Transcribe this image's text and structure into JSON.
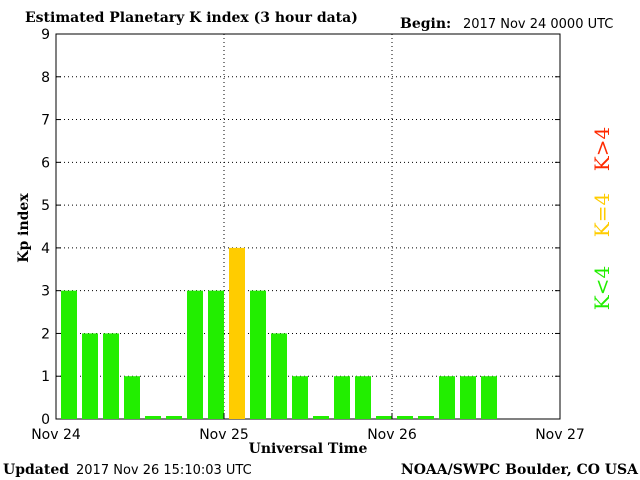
{
  "header": {
    "title": "Estimated Planetary K index (3 hour data)",
    "begin_label": "Begin:",
    "begin_value": "2017 Nov 24 0000 UTC"
  },
  "footer": {
    "updated_label": "Updated",
    "updated_value": "2017 Nov 26 15:10:03 UTC",
    "credit": "NOAA/SWPC Boulder, CO USA"
  },
  "legend": {
    "high": {
      "label": "K>4",
      "color": "#ff2a00"
    },
    "equal": {
      "label": "K=4",
      "color": "#ffcc00"
    },
    "low": {
      "label": "K<4",
      "color": "#22ee00"
    }
  },
  "chart_data": {
    "type": "bar",
    "title": "Estimated Planetary K index (3 hour data)",
    "xlabel": "Universal Time",
    "ylabel": "Kp index",
    "ylim": [
      0,
      9
    ],
    "yticks": [
      0,
      1,
      2,
      3,
      4,
      5,
      6,
      7,
      8,
      9
    ],
    "x_day_ticks": [
      "Nov 24",
      "Nov 25",
      "Nov 26",
      "Nov 27"
    ],
    "bars_per_day": 8,
    "grid": true,
    "values": [
      3,
      2,
      2,
      1,
      0,
      0,
      3,
      3,
      4,
      3,
      2,
      1,
      0,
      1,
      1,
      0,
      0,
      0,
      1,
      1,
      1
    ],
    "colors": {
      "below_4": "#22ee00",
      "equal_4": "#ffcc00",
      "above_4": "#ff2a00"
    }
  }
}
